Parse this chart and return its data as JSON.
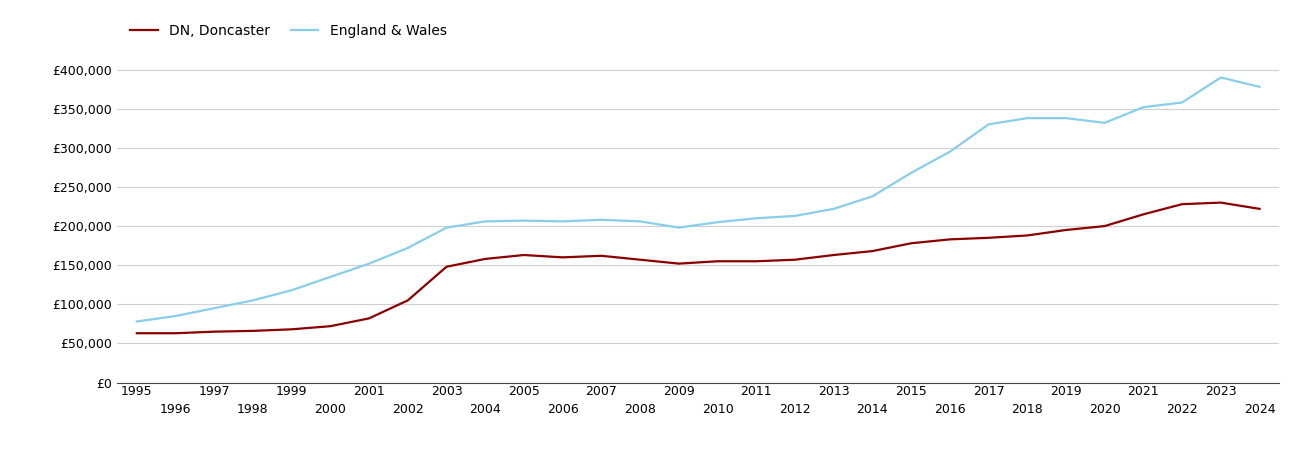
{
  "doncaster_label": "DN, Doncaster",
  "england_label": "England & Wales",
  "doncaster_color": "#8B0000",
  "england_color": "#87CEEB",
  "background_color": "#ffffff",
  "grid_color": "#d0d0d0",
  "years": [
    1995,
    1996,
    1997,
    1998,
    1999,
    2000,
    2001,
    2002,
    2003,
    2004,
    2005,
    2006,
    2007,
    2008,
    2009,
    2010,
    2011,
    2012,
    2013,
    2014,
    2015,
    2016,
    2017,
    2018,
    2019,
    2020,
    2021,
    2022,
    2023,
    2024
  ],
  "doncaster_values": [
    63000,
    63000,
    65000,
    66000,
    68000,
    72000,
    82000,
    105000,
    148000,
    158000,
    163000,
    160000,
    162000,
    157000,
    152000,
    155000,
    155000,
    157000,
    163000,
    168000,
    178000,
    183000,
    185000,
    188000,
    195000,
    200000,
    215000,
    228000,
    230000,
    222000
  ],
  "england_values": [
    78000,
    85000,
    95000,
    105000,
    118000,
    135000,
    152000,
    172000,
    198000,
    206000,
    207000,
    206000,
    208000,
    206000,
    198000,
    205000,
    210000,
    213000,
    222000,
    238000,
    268000,
    295000,
    330000,
    338000,
    338000,
    332000,
    352000,
    358000,
    390000,
    378000
  ],
  "ylim": [
    0,
    420000
  ],
  "yticks": [
    0,
    50000,
    100000,
    150000,
    200000,
    250000,
    300000,
    350000,
    400000
  ],
  "odd_xticks": [
    1995,
    1997,
    1999,
    2001,
    2003,
    2005,
    2007,
    2009,
    2011,
    2013,
    2015,
    2017,
    2019,
    2021,
    2023
  ],
  "even_xticks": [
    1996,
    1998,
    2000,
    2002,
    2004,
    2006,
    2008,
    2010,
    2012,
    2014,
    2016,
    2018,
    2020,
    2022,
    2024
  ],
  "line_width": 1.6
}
